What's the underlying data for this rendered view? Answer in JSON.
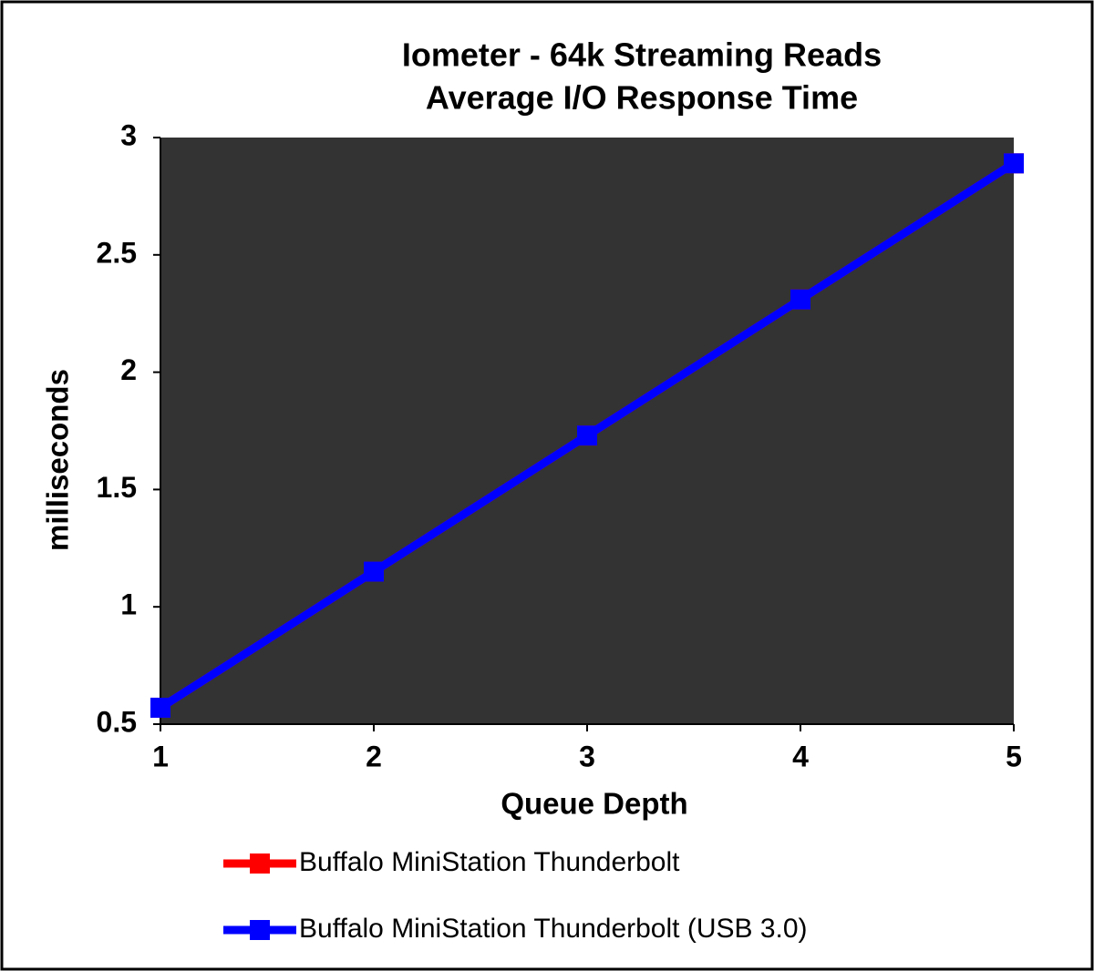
{
  "chart_data": {
    "type": "line",
    "title": "Iometer - 64k Streaming Reads",
    "subtitle": "Average I/O Response Time",
    "x_label": "Queue Depth",
    "y_label": "milliseconds",
    "x": [
      1,
      2,
      3,
      4,
      5
    ],
    "series": [
      {
        "name": "Buffalo MiniStation Thunderbolt",
        "color": "#ff0000",
        "values": [
          0.57,
          1.15,
          1.73,
          2.31,
          2.89
        ]
      },
      {
        "name": "Buffalo MiniStation Thunderbolt (USB 3.0)",
        "color": "#0000ff",
        "values": [
          0.57,
          1.15,
          1.73,
          2.31,
          2.89
        ]
      }
    ],
    "xlim": [
      1,
      5
    ],
    "xticks": [
      1,
      2,
      3,
      4,
      5
    ],
    "ylim": [
      0.5,
      3
    ],
    "yticks": [
      0.5,
      1,
      1.5,
      2,
      2.5,
      3
    ],
    "grid": false,
    "plot_background": "#333333",
    "legend": "bottom"
  }
}
